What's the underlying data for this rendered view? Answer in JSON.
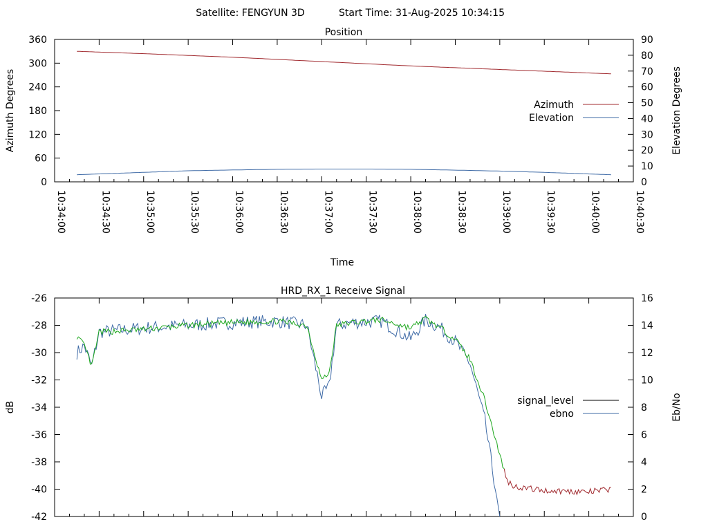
{
  "header": {
    "satellite_text": "Satellite: FENGYUN 3D",
    "start_time_text": "Start Time: 31-Aug-2025 10:34:15"
  },
  "colors": {
    "axis": "#000000",
    "azimuth": "#a0282d",
    "elevation": "#3e6aa6",
    "signal_level": "#000000",
    "ebno": "#3e6aa6",
    "signal_green": "#1fa81f",
    "signal_red": "#a0282d"
  },
  "chart_data": [
    {
      "type": "line",
      "title": "Position",
      "xlabel": "Time",
      "ylabel": "Azimuth Degrees",
      "y2label": "Elevation Degrees",
      "xlim": [
        "10:34:00",
        "10:40:30"
      ],
      "ylim": [
        0,
        360
      ],
      "y2lim": [
        0,
        90
      ],
      "xticks": [
        "10:34:00",
        "10:34:30",
        "10:35:00",
        "10:35:30",
        "10:36:00",
        "10:36:30",
        "10:37:00",
        "10:37:30",
        "10:38:00",
        "10:38:30",
        "10:39:00",
        "10:39:30",
        "10:40:00",
        "10:40:30"
      ],
      "yticks": [
        "0",
        "60",
        "120",
        "180",
        "240",
        "300",
        "360"
      ],
      "y2ticks": [
        "0",
        "10",
        "20",
        "30",
        "40",
        "50",
        "60",
        "70",
        "80",
        "90"
      ],
      "legend_position": "right-middle",
      "series": [
        {
          "name": "Azimuth",
          "axis": "left",
          "x": [
            "10:34:15",
            "10:35:00",
            "10:36:00",
            "10:37:00",
            "10:38:00",
            "10:39:00",
            "10:40:15"
          ],
          "values": [
            330,
            324,
            315,
            304,
            293,
            284,
            273
          ]
        },
        {
          "name": "Elevation",
          "axis": "right",
          "x": [
            "10:34:15",
            "10:35:00",
            "10:35:30",
            "10:36:00",
            "10:36:30",
            "10:37:00",
            "10:37:30",
            "10:38:00",
            "10:38:30",
            "10:39:00",
            "10:39:30",
            "10:40:15"
          ],
          "values": [
            4.5,
            6,
            7,
            7.5,
            7.9,
            8.1,
            8.1,
            7.9,
            7.4,
            6.8,
            6.0,
            4.5
          ]
        }
      ]
    },
    {
      "type": "line",
      "title": "HRD_RX_1 Receive Signal",
      "xlabel": "",
      "ylabel": "dB",
      "y2label": "Eb/No",
      "xlim": [
        "10:34:00",
        "10:40:30"
      ],
      "ylim": [
        -42,
        -26
      ],
      "y2lim": [
        0,
        16
      ],
      "yticks": [
        "-42",
        "-40",
        "-38",
        "-36",
        "-34",
        "-32",
        "-30",
        "-28",
        "-26"
      ],
      "y2ticks": [
        "0",
        "2",
        "4",
        "6",
        "8",
        "10",
        "12",
        "14",
        "16"
      ],
      "legend_position": "right-middle",
      "series": [
        {
          "name": "signal_level",
          "axis": "left",
          "x": [
            "10:34:15",
            "10:34:20",
            "10:34:25",
            "10:34:30",
            "10:35:00",
            "10:35:30",
            "10:36:00",
            "10:36:30",
            "10:36:50",
            "10:37:00",
            "10:37:05",
            "10:37:10",
            "10:37:20",
            "10:37:40",
            "10:38:00",
            "10:38:10",
            "10:38:20",
            "10:38:30",
            "10:38:40",
            "10:38:50",
            "10:39:00",
            "10:39:05",
            "10:39:10",
            "10:39:30",
            "10:40:00",
            "10:40:15"
          ],
          "values": [
            -28.8,
            -29.5,
            -31.0,
            -28.5,
            -28.3,
            -28.0,
            -27.8,
            -27.7,
            -28.0,
            -32.0,
            -31.5,
            -28.0,
            -27.8,
            -27.6,
            -28.2,
            -27.5,
            -28.2,
            -29.0,
            -30.5,
            -33.5,
            -37.5,
            -39.4,
            -39.8,
            -40.1,
            -40.2,
            -40.0
          ]
        },
        {
          "name": "ebno",
          "axis": "right",
          "x": [
            "10:34:15",
            "10:34:20",
            "10:34:25",
            "10:34:30",
            "10:35:00",
            "10:35:30",
            "10:36:00",
            "10:36:30",
            "10:36:50",
            "10:37:00",
            "10:37:05",
            "10:37:10",
            "10:37:20",
            "10:37:40",
            "10:38:00",
            "10:38:10",
            "10:38:20",
            "10:38:30",
            "10:38:40",
            "10:38:50",
            "10:39:00"
          ],
          "values": [
            12.0,
            12.5,
            11.0,
            13.5,
            13.8,
            14.0,
            14.2,
            14.3,
            14.0,
            8.8,
            9.5,
            14.0,
            14.2,
            14.3,
            13.0,
            14.4,
            13.8,
            12.8,
            11.2,
            7.0,
            0.0
          ]
        }
      ]
    }
  ]
}
